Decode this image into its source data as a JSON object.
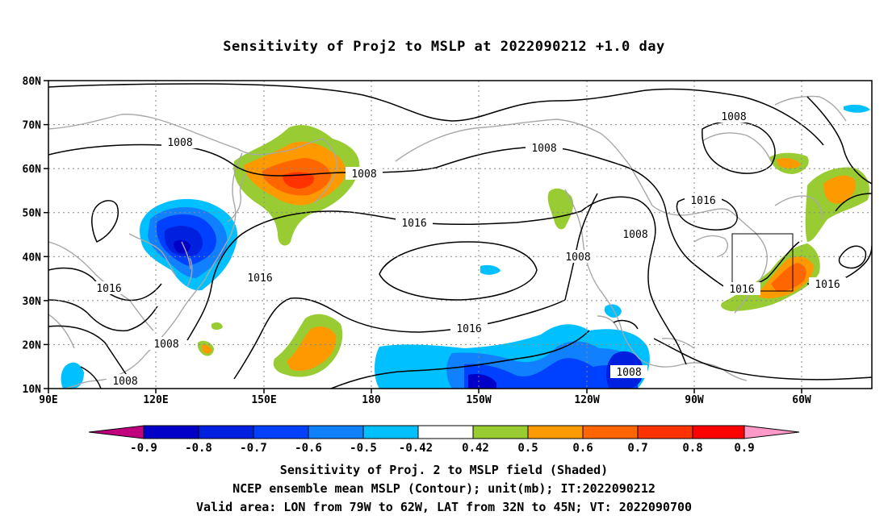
{
  "title": "Sensitivity of Proj2 to MSLP at 2022090212 +1.0 day",
  "lat_labels": [
    "80N",
    "70N",
    "60N",
    "50N",
    "40N",
    "30N",
    "20N",
    "10N"
  ],
  "lon_labels": [
    "90E",
    "120E",
    "150E",
    "180",
    "150W",
    "120W",
    "90W",
    "60W"
  ],
  "contour_labels": [
    {
      "id": "c1",
      "text": "1008"
    },
    {
      "id": "c2",
      "text": "1008"
    },
    {
      "id": "c3",
      "text": "1008"
    },
    {
      "id": "c4",
      "text": "1008"
    },
    {
      "id": "c5",
      "text": "1016"
    },
    {
      "id": "c6",
      "text": "1016"
    },
    {
      "id": "c7",
      "text": "1016"
    },
    {
      "id": "c8",
      "text": "1008"
    },
    {
      "id": "c9",
      "text": "1008"
    },
    {
      "id": "c10",
      "text": "1016"
    },
    {
      "id": "c11",
      "text": "1008"
    },
    {
      "id": "c12",
      "text": "1008"
    },
    {
      "id": "c13",
      "text": "1016"
    },
    {
      "id": "c14",
      "text": "1016"
    },
    {
      "id": "c15",
      "text": "1016"
    },
    {
      "id": "c16",
      "text": "1008"
    }
  ],
  "colorbar": {
    "colors": [
      "#c0007e",
      "#0000c8",
      "#0020e0",
      "#0040ff",
      "#1080ff",
      "#00c0ff",
      "#ffffff",
      "#99cc33",
      "#ff9900",
      "#ff6600",
      "#ff3300",
      "#ff0000",
      "#ff99c8"
    ],
    "labels": [
      "-0.9",
      "-0.8",
      "-0.7",
      "-0.6",
      "-0.5",
      "-0.42",
      "0.42",
      "0.5",
      "0.6",
      "0.7",
      "0.8",
      "0.9"
    ]
  },
  "captions": {
    "line1": "Sensitivity of Proj. 2 to MSLP field (Shaded)",
    "line2": "NCEP ensemble mean MSLP (Contour); unit(mb); IT:2022090212",
    "line3": "Valid area: LON from 79W to 62W, LAT from 32N to 45N; VT: 2022090700"
  },
  "valid_area": {
    "lon_from": "79W",
    "lon_to": "62W",
    "lat_from": "32N",
    "lat_to": "45N"
  }
}
